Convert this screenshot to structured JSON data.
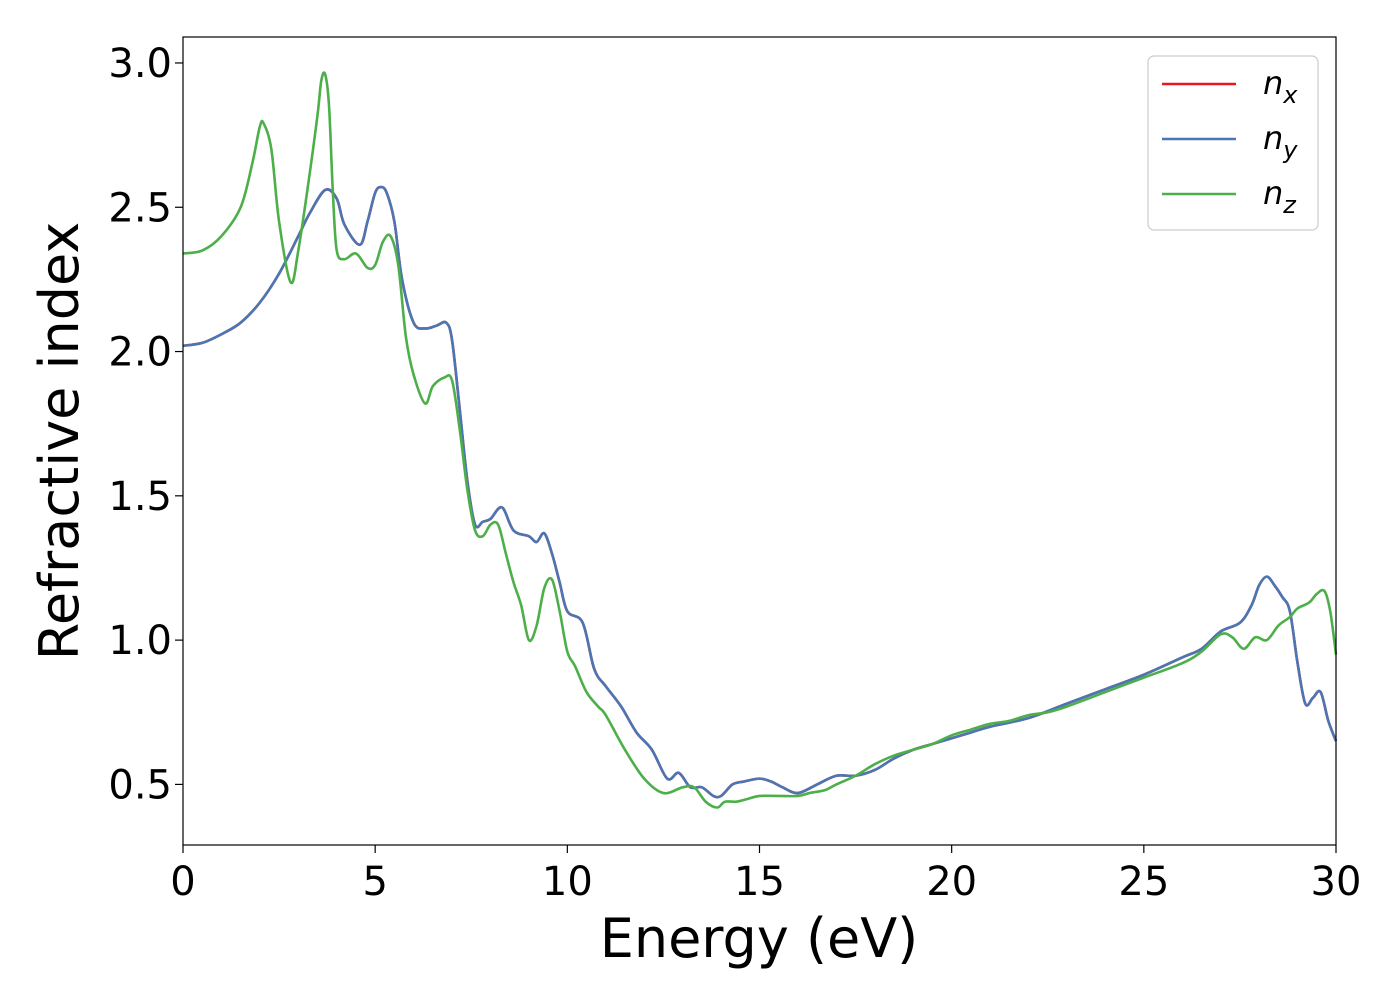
{
  "chart_data": {
    "type": "line",
    "title": "",
    "xlabel": "Energy (eV)",
    "ylabel": "Refractive index",
    "xlim": [
      0,
      30
    ],
    "ylim": [
      0.29,
      3.09
    ],
    "xticks": [
      0,
      5,
      10,
      15,
      20,
      25,
      30
    ],
    "yticks": [
      0.5,
      1.0,
      1.5,
      2.0,
      2.5,
      3.0
    ],
    "xtick_labels": [
      "0",
      "5",
      "10",
      "15",
      "20",
      "25",
      "30"
    ],
    "ytick_labels": [
      "0.5",
      "1.0",
      "1.5",
      "2.0",
      "2.5",
      "3.0"
    ],
    "grid": false,
    "legend_position": "top-right",
    "series": [
      {
        "name": "n",
        "subscript": "x",
        "color": "#e41a1c",
        "x": [
          0,
          0.5,
          1.0,
          1.5,
          2.0,
          2.5,
          3.0,
          3.3,
          3.7,
          4.0,
          4.2,
          4.6,
          4.8,
          5.0,
          5.15,
          5.3,
          5.5,
          5.7,
          6.0,
          6.3,
          6.6,
          6.85,
          7.0,
          7.2,
          7.4,
          7.6,
          7.8,
          8.0,
          8.3,
          8.6,
          9.0,
          9.2,
          9.4,
          9.6,
          9.8,
          10.0,
          10.4,
          10.7,
          11.0,
          11.4,
          11.8,
          12.2,
          12.6,
          12.9,
          13.2,
          13.5,
          13.8,
          14.0,
          14.3,
          14.6,
          15.0,
          15.3,
          15.6,
          16.0,
          16.5,
          17.0,
          17.5,
          18.0,
          18.5,
          19.0,
          19.5,
          20.0,
          20.5,
          21.0,
          22.0,
          23.0,
          24.0,
          25.0,
          26.0,
          26.5,
          27.0,
          27.5,
          27.8,
          28.0,
          28.2,
          28.4,
          28.6,
          28.8,
          29.0,
          29.2,
          29.4,
          29.6,
          29.8,
          30.0
        ],
        "y": [
          2.02,
          2.03,
          2.06,
          2.1,
          2.17,
          2.27,
          2.4,
          2.48,
          2.56,
          2.53,
          2.44,
          2.37,
          2.45,
          2.55,
          2.57,
          2.55,
          2.45,
          2.25,
          2.1,
          2.08,
          2.09,
          2.1,
          2.04,
          1.8,
          1.55,
          1.4,
          1.41,
          1.42,
          1.46,
          1.38,
          1.36,
          1.34,
          1.37,
          1.3,
          1.2,
          1.1,
          1.06,
          0.9,
          0.84,
          0.77,
          0.68,
          0.62,
          0.52,
          0.54,
          0.49,
          0.49,
          0.46,
          0.46,
          0.5,
          0.51,
          0.52,
          0.51,
          0.49,
          0.47,
          0.5,
          0.53,
          0.53,
          0.55,
          0.59,
          0.62,
          0.64,
          0.66,
          0.68,
          0.7,
          0.73,
          0.78,
          0.83,
          0.88,
          0.94,
          0.97,
          1.03,
          1.06,
          1.12,
          1.19,
          1.22,
          1.19,
          1.15,
          1.1,
          0.92,
          0.78,
          0.8,
          0.82,
          0.72,
          0.65
        ]
      },
      {
        "name": "n",
        "subscript": "y",
        "color": "#4a76b4",
        "x": [
          0,
          0.5,
          1.0,
          1.5,
          2.0,
          2.5,
          3.0,
          3.3,
          3.7,
          4.0,
          4.2,
          4.6,
          4.8,
          5.0,
          5.15,
          5.3,
          5.5,
          5.7,
          6.0,
          6.3,
          6.6,
          6.85,
          7.0,
          7.2,
          7.4,
          7.6,
          7.8,
          8.0,
          8.3,
          8.6,
          9.0,
          9.2,
          9.4,
          9.6,
          9.8,
          10.0,
          10.4,
          10.7,
          11.0,
          11.4,
          11.8,
          12.2,
          12.6,
          12.9,
          13.2,
          13.5,
          13.8,
          14.0,
          14.3,
          14.6,
          15.0,
          15.3,
          15.6,
          16.0,
          16.5,
          17.0,
          17.5,
          18.0,
          18.5,
          19.0,
          19.5,
          20.0,
          20.5,
          21.0,
          22.0,
          23.0,
          24.0,
          25.0,
          26.0,
          26.5,
          27.0,
          27.5,
          27.8,
          28.0,
          28.2,
          28.4,
          28.6,
          28.8,
          29.0,
          29.2,
          29.4,
          29.6,
          29.8,
          30.0
        ],
        "y": [
          2.02,
          2.03,
          2.06,
          2.1,
          2.17,
          2.27,
          2.4,
          2.48,
          2.56,
          2.53,
          2.44,
          2.37,
          2.45,
          2.55,
          2.57,
          2.55,
          2.45,
          2.25,
          2.1,
          2.08,
          2.09,
          2.1,
          2.04,
          1.8,
          1.55,
          1.4,
          1.41,
          1.42,
          1.46,
          1.38,
          1.36,
          1.34,
          1.37,
          1.3,
          1.2,
          1.1,
          1.06,
          0.9,
          0.84,
          0.77,
          0.68,
          0.62,
          0.52,
          0.54,
          0.49,
          0.49,
          0.46,
          0.46,
          0.5,
          0.51,
          0.52,
          0.51,
          0.49,
          0.47,
          0.5,
          0.53,
          0.53,
          0.55,
          0.59,
          0.62,
          0.64,
          0.66,
          0.68,
          0.7,
          0.73,
          0.78,
          0.83,
          0.88,
          0.94,
          0.97,
          1.03,
          1.06,
          1.12,
          1.19,
          1.22,
          1.19,
          1.15,
          1.1,
          0.92,
          0.78,
          0.8,
          0.82,
          0.72,
          0.65
        ]
      },
      {
        "name": "n",
        "subscript": "z",
        "color": "#4daf4a",
        "x": [
          0,
          0.5,
          1.0,
          1.5,
          1.8,
          2.0,
          2.1,
          2.3,
          2.5,
          2.8,
          3.0,
          3.3,
          3.5,
          3.6,
          3.7,
          3.8,
          3.9,
          4.0,
          4.2,
          4.5,
          4.8,
          5.0,
          5.2,
          5.4,
          5.6,
          5.8,
          6.0,
          6.3,
          6.5,
          6.8,
          7.0,
          7.2,
          7.4,
          7.6,
          7.8,
          8.0,
          8.2,
          8.4,
          8.6,
          8.8,
          9.0,
          9.2,
          9.4,
          9.6,
          9.8,
          10.0,
          10.2,
          10.5,
          10.8,
          11.0,
          11.5,
          12.0,
          12.5,
          13.0,
          13.3,
          13.6,
          13.9,
          14.1,
          14.4,
          14.7,
          15.0,
          15.5,
          16.0,
          16.3,
          16.7,
          17.0,
          17.5,
          18.0,
          18.5,
          19.0,
          19.5,
          20.0,
          20.5,
          21.0,
          21.5,
          22.0,
          22.5,
          23.0,
          24.0,
          25.0,
          26.0,
          26.5,
          27.0,
          27.3,
          27.6,
          27.9,
          28.2,
          28.5,
          28.8,
          29.0,
          29.3,
          29.5,
          29.7,
          29.85,
          30.0
        ],
        "y": [
          2.34,
          2.35,
          2.4,
          2.5,
          2.65,
          2.78,
          2.79,
          2.7,
          2.45,
          2.24,
          2.35,
          2.62,
          2.82,
          2.94,
          2.96,
          2.85,
          2.55,
          2.35,
          2.32,
          2.34,
          2.29,
          2.3,
          2.38,
          2.4,
          2.3,
          2.05,
          1.92,
          1.82,
          1.88,
          1.91,
          1.9,
          1.73,
          1.52,
          1.38,
          1.36,
          1.4,
          1.4,
          1.3,
          1.2,
          1.12,
          1.0,
          1.05,
          1.18,
          1.21,
          1.1,
          0.96,
          0.91,
          0.82,
          0.77,
          0.74,
          0.62,
          0.52,
          0.47,
          0.49,
          0.49,
          0.44,
          0.42,
          0.44,
          0.44,
          0.45,
          0.46,
          0.46,
          0.46,
          0.47,
          0.48,
          0.5,
          0.53,
          0.57,
          0.6,
          0.62,
          0.64,
          0.67,
          0.69,
          0.71,
          0.72,
          0.74,
          0.75,
          0.77,
          0.82,
          0.87,
          0.92,
          0.96,
          1.02,
          1.01,
          0.97,
          1.01,
          1.0,
          1.05,
          1.08,
          1.11,
          1.13,
          1.16,
          1.17,
          1.1,
          0.95
        ]
      }
    ]
  }
}
